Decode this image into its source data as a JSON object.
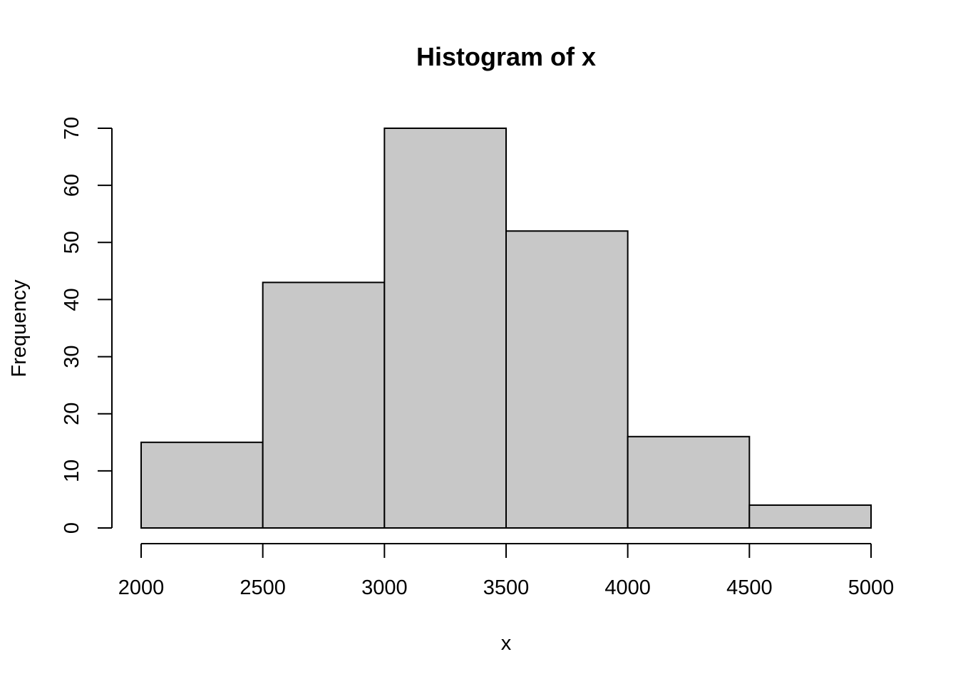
{
  "chart_data": {
    "type": "bar",
    "title": "Histogram of x",
    "xlabel": "x",
    "ylabel": "Frequency",
    "bins": [
      {
        "start": 2000,
        "end": 2500,
        "value": 15
      },
      {
        "start": 2500,
        "end": 3000,
        "value": 43
      },
      {
        "start": 3000,
        "end": 3500,
        "value": 70
      },
      {
        "start": 3500,
        "end": 4000,
        "value": 52
      },
      {
        "start": 4000,
        "end": 4500,
        "value": 16
      },
      {
        "start": 4500,
        "end": 5000,
        "value": 4
      }
    ],
    "xlim": [
      2000,
      5000
    ],
    "ylim": [
      0,
      70
    ],
    "xticks": [
      2000,
      2500,
      3000,
      3500,
      4000,
      4500,
      5000
    ],
    "yticks": [
      0,
      10,
      20,
      30,
      40,
      50,
      60,
      70
    ],
    "bar_color": "#c8c8c8",
    "border_color": "#000000",
    "grid": false,
    "legend": "none"
  }
}
